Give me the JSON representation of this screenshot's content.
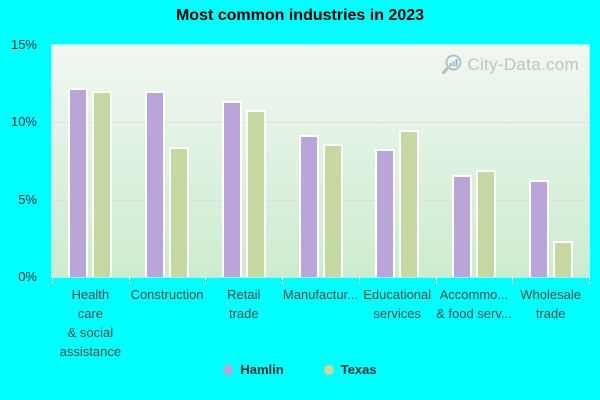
{
  "chart_data": {
    "type": "bar",
    "title": "Most common industries in 2023",
    "categories": [
      "Health\ncare\n& social\nassistance",
      "Construction",
      "Retail\ntrade",
      "Manufactur...",
      "Educational\nservices",
      "Accommo...\n& food serv...",
      "Wholesale\ntrade"
    ],
    "series": [
      {
        "name": "Hamlin",
        "color": "#b9a5d8",
        "values": [
          12.2,
          12.0,
          11.4,
          9.2,
          8.3,
          6.6,
          6.3
        ]
      },
      {
        "name": "Texas",
        "color": "#c6d8a2",
        "values": [
          12.0,
          8.4,
          10.8,
          8.6,
          9.5,
          6.9,
          2.3
        ]
      }
    ],
    "xlabel": "",
    "ylabel": "",
    "ylim": [
      0,
      15
    ],
    "yticks": [
      0,
      5,
      10,
      15
    ],
    "ytick_format": "{v}%",
    "grid": "horizontal",
    "legend_position": "bottom"
  },
  "watermark": {
    "label": "City-Data.com"
  },
  "colors": {
    "page_background": "#00ffff",
    "plot_gradient_top": "#f1f7f2",
    "plot_gradient_bottom": "#ccecd0",
    "gridline": "#e4d6e2",
    "hamlin_bar": "#b9a5d8",
    "texas_bar": "#c6d8a2",
    "watermark_text": "#bcc1c4"
  }
}
